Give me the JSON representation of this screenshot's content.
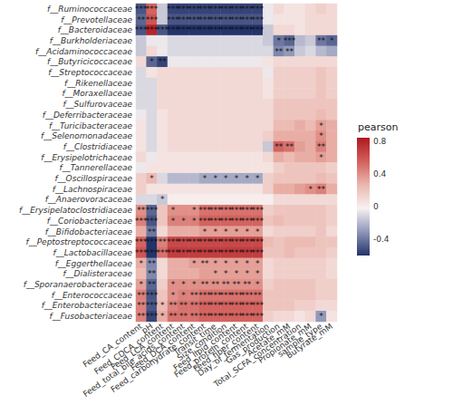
{
  "chart_data": {
    "type": "heatmap",
    "x_categories": [
      "Feed_CA_content",
      "pH",
      "Feed_CDCA_content",
      "Feed_LCA_content",
      "Feed_total_bile_acids_content",
      "Feed_DCA_content",
      "Feed_carbohydrate_content",
      "Transit_time",
      "Size_condition",
      "Feed_lipid_content",
      "Feed_protein_content",
      "Feed_fiber_content",
      "Day_of_fermentation",
      "Gas_production",
      "Acetate_mM",
      "Total_SCFA_concentration",
      "Propionate_mM",
      "sample_type",
      "Butyrate_mM"
    ],
    "y_categories": [
      "f__Ruminococcaceae",
      "f__Prevotellaceae",
      "f__Bacteroidaceae",
      "f__Burkholderiaceae",
      "f__Acidaminococcaceae",
      "f__Butyricicoccaceae",
      "f__Streptococcaceae",
      "f__Rikenellaceae",
      "f__Moraxellaceae",
      "f__Sulfurovaceae",
      "f__Deferribacteraceae",
      "f__Turicibacteraceae",
      "f__Selenomonadaceae",
      "f__Clostridiaceae",
      "f__Erysipelotrichaceae",
      "f__Tannerellaceae",
      "f__Oscillospiraceae",
      "f__Lachnospiraceae",
      "f__Anaerovoracaceae",
      "f__Erysipelatoclostridiaceae",
      "f__Coriobacteriaceae",
      "f__Bifidobacteriaceae",
      "f__Peptostreptococcaceae",
      "f__Lactobacillaceae",
      "f__Eggerthellaceae",
      "f__Dialisteraceae",
      "f__Sporanaerobacteraceae",
      "f__Enterococcaceae",
      "f__Enterobacteriaceae",
      "f__Fusobacteriaceae"
    ],
    "values": [
      [
        -0.5,
        0.55,
        -0.15,
        -0.55,
        -0.55,
        -0.55,
        -0.55,
        -0.55,
        -0.55,
        -0.55,
        -0.55,
        -0.55,
        -0.05,
        0.1,
        0.05,
        0.05,
        0.1,
        0.15,
        0.1
      ],
      [
        -0.45,
        0.6,
        -0.15,
        -0.5,
        -0.5,
        -0.5,
        -0.5,
        -0.5,
        -0.5,
        -0.5,
        -0.5,
        -0.5,
        -0.05,
        0.05,
        0.05,
        0.05,
        0.1,
        0.1,
        0.1
      ],
      [
        -0.5,
        0.8,
        -0.5,
        -0.6,
        -0.6,
        -0.6,
        -0.6,
        -0.6,
        -0.6,
        -0.6,
        -0.6,
        -0.6,
        -0.15,
        0.1,
        0.1,
        0.05,
        0.1,
        0.1,
        0.1
      ],
      [
        -0.15,
        -0.05,
        -0.05,
        -0.1,
        -0.1,
        -0.1,
        -0.1,
        -0.1,
        -0.1,
        -0.1,
        -0.1,
        -0.1,
        -0.15,
        -0.4,
        -0.45,
        -0.2,
        -0.15,
        -0.4,
        -0.45
      ],
      [
        -0.15,
        0.1,
        -0.05,
        -0.1,
        -0.1,
        -0.1,
        -0.1,
        -0.1,
        -0.1,
        -0.1,
        -0.1,
        -0.1,
        -0.1,
        -0.35,
        -0.3,
        -0.15,
        -0.1,
        -0.2,
        -0.25
      ],
      [
        0.1,
        -0.45,
        -0.55,
        -0.05,
        -0.05,
        -0.05,
        -0.05,
        -0.05,
        -0.05,
        -0.05,
        -0.05,
        -0.05,
        0.05,
        0.1,
        0.1,
        0.1,
        0.1,
        0.1,
        0.1
      ],
      [
        -0.1,
        0.05,
        0.1,
        0.1,
        0.1,
        0.1,
        0.1,
        0.1,
        0.1,
        0.1,
        0.1,
        0.1,
        -0.05,
        0.15,
        0.15,
        0.15,
        0.15,
        0.2,
        0.15
      ],
      [
        -0.1,
        -0.1,
        0.1,
        0.1,
        0.1,
        0.1,
        0.1,
        0.1,
        0.1,
        0.1,
        0.1,
        0.1,
        0.05,
        0.15,
        0.15,
        0.15,
        0.15,
        0.2,
        0.15
      ],
      [
        -0.1,
        -0.1,
        0.1,
        0.1,
        0.1,
        0.1,
        0.1,
        0.1,
        0.1,
        0.1,
        0.1,
        0.1,
        0.05,
        0.15,
        0.15,
        0.15,
        0.15,
        0.2,
        0.15
      ],
      [
        -0.1,
        -0.1,
        0.1,
        0.1,
        0.1,
        0.1,
        0.1,
        0.1,
        0.1,
        0.1,
        0.1,
        0.1,
        0.1,
        0.2,
        0.2,
        0.2,
        0.2,
        0.2,
        0.2
      ],
      [
        -0.05,
        -0.1,
        0.05,
        0.1,
        0.1,
        0.1,
        0.1,
        0.1,
        0.1,
        0.1,
        0.1,
        0.1,
        0.1,
        0.2,
        0.2,
        0.2,
        0.2,
        0.25,
        0.2
      ],
      [
        0.05,
        -0.1,
        0.05,
        0.1,
        0.1,
        0.1,
        0.1,
        0.1,
        0.1,
        0.1,
        0.1,
        0.1,
        0.1,
        0.25,
        0.25,
        0.3,
        0.25,
        0.35,
        0.3
      ],
      [
        0.05,
        -0.1,
        0.05,
        0.1,
        0.1,
        0.1,
        0.1,
        0.1,
        0.1,
        0.1,
        0.1,
        0.1,
        0.15,
        0.3,
        0.3,
        0.3,
        0.3,
        0.4,
        0.3
      ],
      [
        0.05,
        -0.1,
        0.05,
        0.1,
        0.1,
        0.1,
        0.1,
        0.1,
        0.1,
        0.1,
        0.1,
        0.1,
        -0.15,
        0.55,
        0.5,
        0.35,
        0.3,
        0.45,
        0.3
      ],
      [
        0.1,
        -0.05,
        0.05,
        0.05,
        0.05,
        0.05,
        0.05,
        0.05,
        0.05,
        0.05,
        0.05,
        0.05,
        0.1,
        0.3,
        0.25,
        0.3,
        0.3,
        0.35,
        0.3
      ],
      [
        -0.05,
        0.05,
        0.05,
        0.05,
        0.05,
        0.05,
        0.05,
        0.05,
        0.05,
        0.05,
        0.05,
        0.05,
        0.05,
        0.15,
        0.2,
        0.2,
        0.2,
        0.2,
        0.15
      ],
      [
        0.15,
        0.25,
        -0.1,
        -0.2,
        -0.2,
        -0.2,
        -0.25,
        -0.25,
        -0.25,
        -0.25,
        -0.25,
        -0.25,
        0.15,
        0.2,
        0.2,
        0.2,
        0.2,
        0.25,
        0.2
      ],
      [
        0.15,
        0.05,
        0.05,
        0.05,
        0.05,
        0.05,
        0.05,
        0.05,
        0.05,
        0.05,
        0.05,
        0.05,
        0.15,
        0.3,
        0.3,
        0.35,
        0.4,
        0.45,
        0.3
      ],
      [
        -0.1,
        -0.1,
        -0.15,
        0,
        0,
        0,
        0,
        0,
        0,
        0,
        0,
        0,
        0,
        0.1,
        0.1,
        0.1,
        0.1,
        0.1,
        0.1
      ],
      [
        0.4,
        -0.45,
        0.2,
        0.4,
        0.4,
        0.4,
        0.5,
        0.5,
        0.5,
        0.5,
        0.5,
        0.5,
        0.15,
        0.2,
        0.2,
        0.2,
        0.2,
        0.2,
        0.15
      ],
      [
        0.45,
        -0.5,
        0.2,
        0.45,
        0.45,
        0.45,
        0.55,
        0.55,
        0.55,
        0.55,
        0.55,
        0.55,
        0.2,
        0.25,
        0.2,
        0.2,
        0.2,
        0.2,
        0.15
      ],
      [
        0.3,
        -0.4,
        0.1,
        0.3,
        0.3,
        0.3,
        0.35,
        0.35,
        0.35,
        0.35,
        0.35,
        0.35,
        0.1,
        0.15,
        0.15,
        0.15,
        0.15,
        0.2,
        0.1
      ],
      [
        0.55,
        -0.6,
        0.45,
        0.65,
        0.65,
        0.65,
        0.65,
        0.65,
        0.65,
        0.65,
        0.65,
        0.65,
        0.25,
        0.2,
        0.25,
        0.25,
        0.25,
        0.2,
        0.2
      ],
      [
        0.6,
        -0.6,
        0.5,
        0.7,
        0.7,
        0.7,
        0.7,
        0.7,
        0.7,
        0.7,
        0.7,
        0.7,
        0.2,
        0.2,
        0.25,
        0.2,
        0.2,
        0.2,
        0.15
      ],
      [
        0.3,
        -0.35,
        0.1,
        0.3,
        0.3,
        0.35,
        0.35,
        0.35,
        0.35,
        0.35,
        0.35,
        0.35,
        0.1,
        0.15,
        0.15,
        0.15,
        0.15,
        0.15,
        0.1
      ],
      [
        0.25,
        -0.35,
        0.1,
        0.3,
        0.3,
        0.3,
        0.35,
        0.35,
        0.35,
        0.35,
        0.35,
        0.35,
        0.1,
        0.15,
        0.15,
        0.15,
        0.15,
        0.15,
        0.1
      ],
      [
        0.35,
        -0.45,
        0.15,
        0.4,
        0.4,
        0.4,
        0.4,
        0.4,
        0.4,
        0.4,
        0.4,
        0.4,
        0.15,
        0.2,
        0.2,
        0.2,
        0.2,
        0.15,
        0.15
      ],
      [
        0.45,
        -0.5,
        0.2,
        0.4,
        0.45,
        0.45,
        0.5,
        0.5,
        0.5,
        0.5,
        0.5,
        0.5,
        0.2,
        0.2,
        0.2,
        0.2,
        0.2,
        0.15,
        0.15
      ],
      [
        0.45,
        -0.5,
        0.25,
        0.45,
        0.5,
        0.5,
        0.55,
        0.55,
        0.55,
        0.55,
        0.55,
        0.55,
        0.2,
        0.2,
        0.2,
        0.15,
        0.15,
        0.1,
        0.1
      ],
      [
        0.45,
        -0.55,
        0.3,
        0.5,
        0.5,
        0.5,
        0.55,
        0.55,
        0.55,
        0.55,
        0.55,
        0.55,
        0.15,
        0.1,
        0.1,
        0.05,
        0.1,
        -0.3,
        0.05
      ]
    ],
    "significance": [
      [
        "***",
        "***",
        null,
        "***",
        "***",
        "***",
        "***",
        "***",
        "***",
        "***",
        "***",
        "***",
        null,
        null,
        null,
        null,
        null,
        null,
        null
      ],
      [
        "**",
        "***",
        null,
        "***",
        "***",
        "***",
        "***",
        "***",
        "***",
        "***",
        "***",
        "***",
        null,
        null,
        null,
        null,
        null,
        null,
        null
      ],
      [
        "***",
        "***",
        "***",
        "***",
        "***",
        "***",
        "***",
        "***",
        "***",
        "***",
        "***",
        "***",
        null,
        null,
        null,
        null,
        null,
        null,
        null
      ],
      [
        null,
        null,
        null,
        null,
        null,
        null,
        null,
        null,
        null,
        null,
        null,
        null,
        null,
        "*",
        "***",
        null,
        null,
        "**",
        "*"
      ],
      [
        null,
        null,
        null,
        null,
        null,
        null,
        null,
        null,
        null,
        null,
        null,
        null,
        null,
        "**",
        "**",
        null,
        null,
        null,
        null
      ],
      [
        null,
        "*",
        "**",
        null,
        null,
        null,
        null,
        null,
        null,
        null,
        null,
        null,
        null,
        null,
        null,
        null,
        null,
        null,
        null
      ],
      [
        null,
        null,
        null,
        null,
        null,
        null,
        null,
        null,
        null,
        null,
        null,
        null,
        null,
        null,
        null,
        null,
        null,
        null,
        null
      ],
      [
        null,
        null,
        null,
        null,
        null,
        null,
        null,
        null,
        null,
        null,
        null,
        null,
        null,
        null,
        null,
        null,
        null,
        null,
        null
      ],
      [
        null,
        null,
        null,
        null,
        null,
        null,
        null,
        null,
        null,
        null,
        null,
        null,
        null,
        null,
        null,
        null,
        null,
        null,
        null
      ],
      [
        null,
        null,
        null,
        null,
        null,
        null,
        null,
        null,
        null,
        null,
        null,
        null,
        null,
        null,
        null,
        null,
        null,
        null,
        null
      ],
      [
        null,
        null,
        null,
        null,
        null,
        null,
        null,
        null,
        null,
        null,
        null,
        null,
        null,
        null,
        null,
        null,
        null,
        null,
        null
      ],
      [
        null,
        null,
        null,
        null,
        null,
        null,
        null,
        null,
        null,
        null,
        null,
        null,
        null,
        null,
        null,
        null,
        null,
        "*",
        null
      ],
      [
        null,
        null,
        null,
        null,
        null,
        null,
        null,
        null,
        null,
        null,
        null,
        null,
        null,
        null,
        null,
        null,
        null,
        "*",
        null
      ],
      [
        null,
        null,
        null,
        null,
        null,
        null,
        null,
        null,
        null,
        null,
        null,
        null,
        null,
        "**",
        "**",
        null,
        null,
        "**",
        null
      ],
      [
        null,
        null,
        null,
        null,
        null,
        null,
        null,
        null,
        null,
        null,
        null,
        null,
        null,
        null,
        null,
        null,
        null,
        "*",
        null
      ],
      [
        null,
        null,
        null,
        null,
        null,
        null,
        null,
        null,
        null,
        null,
        null,
        null,
        null,
        null,
        null,
        null,
        null,
        null,
        null
      ],
      [
        null,
        "*",
        null,
        null,
        null,
        null,
        "*",
        "*",
        "*",
        "*",
        "*",
        "*",
        null,
        null,
        null,
        null,
        null,
        null,
        null
      ],
      [
        null,
        null,
        null,
        null,
        null,
        null,
        null,
        null,
        null,
        null,
        null,
        null,
        null,
        null,
        null,
        null,
        "*",
        "**",
        null
      ],
      [
        null,
        null,
        "*",
        null,
        null,
        null,
        null,
        null,
        null,
        null,
        null,
        null,
        null,
        null,
        null,
        null,
        null,
        null,
        null
      ],
      [
        "**",
        "***",
        null,
        "*",
        null,
        "*",
        "***",
        "***",
        "***",
        "***",
        "***",
        "***",
        null,
        null,
        null,
        null,
        null,
        null,
        null
      ],
      [
        "***",
        "***",
        null,
        "*",
        "*",
        "*",
        "***",
        "***",
        "***",
        "***",
        "***",
        "***",
        null,
        null,
        null,
        null,
        null,
        null,
        null
      ],
      [
        null,
        "**",
        null,
        null,
        null,
        null,
        "*",
        "*",
        "*",
        "*",
        "*",
        "*",
        null,
        null,
        null,
        null,
        null,
        null,
        null
      ],
      [
        "***",
        "***",
        "**",
        "***",
        "***",
        "***",
        "***",
        "***",
        "***",
        "***",
        "***",
        "***",
        null,
        null,
        null,
        null,
        null,
        null,
        null
      ],
      [
        "***",
        "***",
        "***",
        "***",
        "***",
        "***",
        "***",
        "***",
        "***",
        "***",
        "***",
        "***",
        null,
        null,
        null,
        null,
        null,
        null,
        null
      ],
      [
        "*",
        "**",
        null,
        null,
        null,
        "*",
        "**",
        "*",
        "*",
        "*",
        "*",
        "*",
        null,
        null,
        null,
        null,
        null,
        null,
        null
      ],
      [
        null,
        "**",
        null,
        null,
        null,
        null,
        null,
        "*",
        "*",
        "*",
        "*",
        "*",
        null,
        null,
        null,
        null,
        null,
        null,
        null
      ],
      [
        "*",
        "**",
        null,
        "*",
        "*",
        "*",
        "**",
        "**",
        "**",
        "**",
        "**",
        "*",
        null,
        null,
        null,
        null,
        null,
        null,
        null
      ],
      [
        "**",
        "***",
        null,
        "*",
        "*",
        "**",
        "***",
        "***",
        "***",
        "***",
        "***",
        "**",
        null,
        null,
        null,
        null,
        null,
        null,
        null
      ],
      [
        "**",
        "***",
        "*",
        "**",
        "**",
        "**",
        "***",
        "***",
        "***",
        "***",
        "***",
        "***",
        null,
        null,
        null,
        null,
        null,
        null,
        null
      ],
      [
        "**",
        "***",
        "*",
        "**",
        "**",
        "**",
        "***",
        "***",
        "***",
        "***",
        "***",
        "***",
        null,
        null,
        null,
        null,
        null,
        "*",
        null
      ]
    ],
    "color_title": "pearson",
    "color_range": [
      -0.6,
      0.85
    ],
    "color_ticks": [
      -0.4,
      0,
      0.4,
      0.8
    ]
  }
}
